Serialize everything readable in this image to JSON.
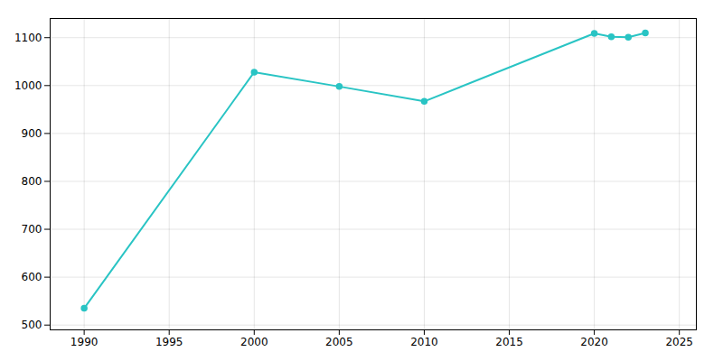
{
  "chart_data": {
    "type": "line",
    "x": [
      1990,
      2000,
      2005,
      2010,
      2020,
      2021,
      2022,
      2023
    ],
    "values": [
      535,
      1028,
      998,
      967,
      1109,
      1102,
      1101,
      1110
    ],
    "color": "#29c4c4",
    "marker": "circle",
    "xlim": [
      1988,
      2026
    ],
    "ylim": [
      490,
      1140
    ],
    "xticks": [
      1990,
      1995,
      2000,
      2005,
      2010,
      2015,
      2020,
      2025
    ],
    "yticks": [
      500,
      600,
      700,
      800,
      900,
      1000,
      1100
    ],
    "grid": true
  }
}
